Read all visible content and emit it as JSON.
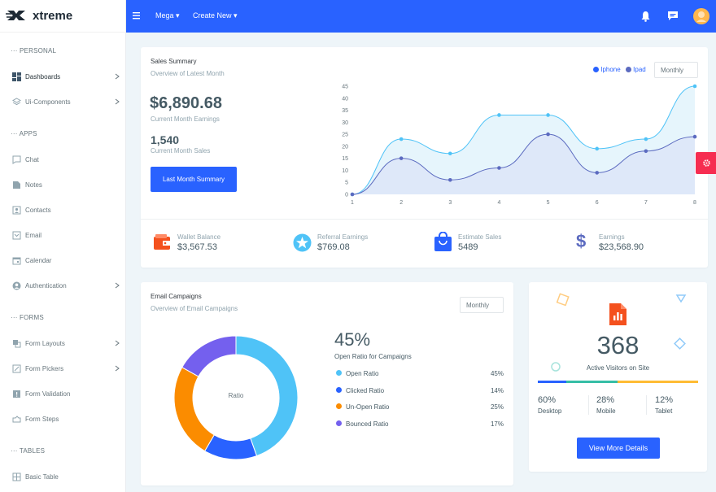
{
  "brand": {
    "name": "xtreme"
  },
  "topbar": {
    "menu1": "Mega",
    "menu2": "Create New",
    "icons": [
      "menu-icon",
      "bell-icon",
      "chat-icon",
      "avatar"
    ]
  },
  "sidebar": {
    "headings": {
      "personal": "PERSONAL",
      "apps": "APPS",
      "forms": "FORMS",
      "tables": "TABLES"
    },
    "items": [
      {
        "label": "Dashboards",
        "icon": "dashboard-icon",
        "active": true
      },
      {
        "label": "Ui-Components",
        "icon": "layers-icon"
      },
      {
        "label": "Chat",
        "icon": "chat-icon"
      },
      {
        "label": "Notes",
        "icon": "note-icon"
      },
      {
        "label": "Contacts",
        "icon": "contacts-icon"
      },
      {
        "label": "Email",
        "icon": "email-icon"
      },
      {
        "label": "Calendar",
        "icon": "calendar-icon"
      },
      {
        "label": "Authentication",
        "icon": "user-icon"
      },
      {
        "label": "Form Layouts",
        "icon": "layout-icon"
      },
      {
        "label": "Form Pickers",
        "icon": "picker-icon"
      },
      {
        "label": "Form Validation",
        "icon": "alert-icon"
      },
      {
        "label": "Form Steps",
        "icon": "steps-icon"
      },
      {
        "label": "Basic Table",
        "icon": "table-icon"
      }
    ]
  },
  "sales": {
    "title": "Sales Summary",
    "subtitle": "Overview of Latest Month",
    "earnings_value": "$6,890.68",
    "earnings_label": "Current Month Earnings",
    "sales_value": "1,540",
    "sales_label": "Current Month Sales",
    "button": "Last Month Summary",
    "legend": [
      "Iphone",
      "Ipad"
    ],
    "select": "Monthly"
  },
  "chart_data": {
    "type": "area",
    "x": [
      1,
      2,
      3,
      4,
      5,
      6,
      7,
      8
    ],
    "ylim": [
      0,
      45
    ],
    "yticks": [
      0,
      5,
      10,
      15,
      20,
      25,
      30,
      35,
      40,
      45
    ],
    "series": [
      {
        "name": "Iphone",
        "values": [
          0,
          23,
          17,
          33,
          33,
          19,
          23,
          45
        ],
        "color": "#4fc3f7"
      },
      {
        "name": "Ipad",
        "values": [
          0,
          15,
          6,
          11,
          25,
          9,
          18,
          24
        ],
        "color": "#5c6bc0"
      }
    ]
  },
  "stats": [
    {
      "label": "Wallet Balance",
      "value": "$3,567.53",
      "icon": "wallet-icon",
      "color": "#f4511e"
    },
    {
      "label": "Referral Earnings",
      "value": "$769.08",
      "icon": "star-icon",
      "color": "#4fc3f7"
    },
    {
      "label": "Estimate Sales",
      "value": "5489",
      "icon": "shopping-bag-icon",
      "color": "#2962ff"
    },
    {
      "label": "Earnings",
      "value": "$23,568.90",
      "icon": "dollar-icon",
      "color": "#5c6bc0"
    }
  ],
  "email": {
    "title": "Email Campaigns",
    "subtitle": "Overview of Email Campaigns",
    "select": "Monthly",
    "donut_label": "Ratio",
    "percent": "45%",
    "percent_label": "Open Ratio for Campaigns",
    "rows": [
      {
        "label": "Open Ratio",
        "value": "45%",
        "fraction": 0.45,
        "color": "#4fc3f7"
      },
      {
        "label": "Clicked Ratio",
        "value": "14%",
        "fraction": 0.14,
        "color": "#2962ff"
      },
      {
        "label": "Un-Open Ratio",
        "value": "25%",
        "fraction": 0.25,
        "color": "#fb8c00"
      },
      {
        "label": "Bounced Ratio",
        "value": "17%",
        "fraction": 0.17,
        "color": "#7460ee"
      }
    ]
  },
  "visitors": {
    "value": "368",
    "label": "Active Visitors on Site",
    "bar": [
      {
        "fraction": 0.18,
        "color": "#2962ff"
      },
      {
        "fraction": 0.32,
        "color": "#36bea6"
      },
      {
        "fraction": 0.5,
        "color": "#ffbc34"
      }
    ],
    "stats": [
      {
        "value": "60%",
        "label": "Desktop"
      },
      {
        "value": "28%",
        "label": "Mobile"
      },
      {
        "value": "12%",
        "label": "Tablet"
      }
    ],
    "button": "View More Details"
  }
}
